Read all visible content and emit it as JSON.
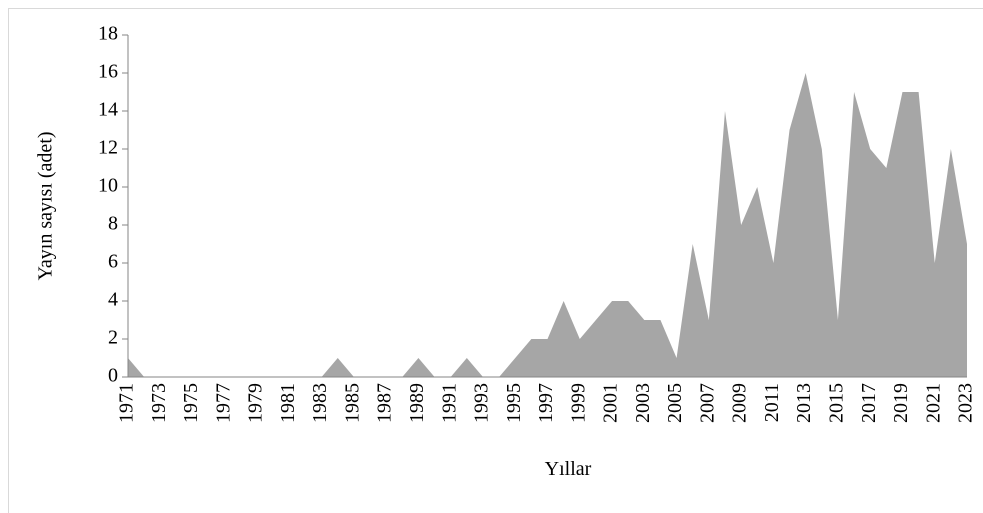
{
  "chart_data": {
    "type": "area",
    "x_label": "Yıllar",
    "y_label": "Yayın sayısı (adet)",
    "categories": [
      "1971",
      null,
      "1973",
      null,
      "1975",
      null,
      "1977",
      null,
      "1979",
      null,
      "1981",
      null,
      "1983",
      null,
      "1985",
      null,
      "1987",
      null,
      "1989",
      null,
      "1991",
      null,
      "1993",
      null,
      "1995",
      null,
      "1997",
      null,
      "1999",
      null,
      "2001",
      null,
      "2003",
      null,
      "2005",
      null,
      "2007",
      null,
      "2009",
      null,
      "2011",
      null,
      "2013",
      null,
      "2015",
      null,
      "2017",
      null,
      "2019",
      null,
      "2021",
      null,
      "2023"
    ],
    "values": [
      1,
      0,
      0,
      0,
      0,
      0,
      0,
      0,
      0,
      0,
      0,
      0,
      0,
      1,
      0,
      0,
      0,
      0,
      1,
      0,
      0,
      1,
      0,
      0,
      1,
      2,
      2,
      4,
      2,
      3,
      4,
      4,
      3,
      3,
      1,
      7,
      3,
      14,
      8,
      10,
      6,
      13,
      16,
      12,
      3,
      15,
      12,
      11,
      15,
      15,
      6,
      12,
      7
    ],
    "color": "#a6a6a6",
    "ylim": [
      0,
      18
    ],
    "yticks": [
      0,
      2,
      4,
      6,
      8,
      10,
      12,
      14,
      16,
      18
    ]
  }
}
